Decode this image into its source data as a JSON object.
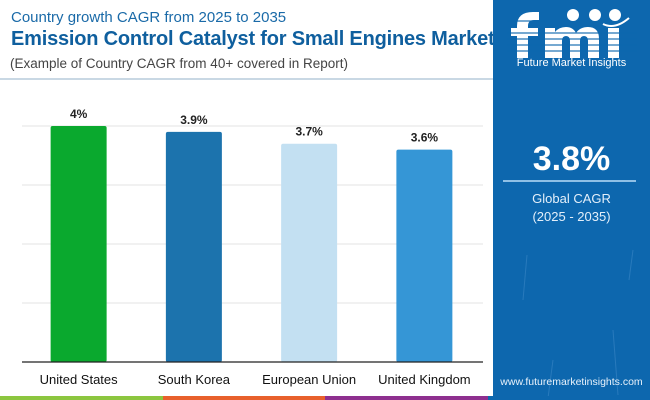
{
  "header": {
    "subtitle": "Country growth CAGR from 2025 to 2035",
    "title": "Emission Control Catalyst for Small Engines Market",
    "note": "(Example of Country CAGR from 40+ covered in Report)"
  },
  "sidebar": {
    "brand_logo_text": "fmi",
    "brand_name": "Future Market Insights",
    "global_cagr_value": "3.8%",
    "global_cagr_label": "Global CAGR",
    "global_cagr_period": "(2025 - 2035)",
    "website": "www.futuremarketinsights.com",
    "background_color": "#0d67ae"
  },
  "bottom_strip_colors": [
    "#8cc63f",
    "#e8602c",
    "#8e2f8f",
    "#0d67ae"
  ],
  "chart_data": {
    "type": "bar",
    "title": "Emission Control Catalyst for Small Engines Market",
    "subtitle": "Country growth CAGR from 2025 to 2035",
    "xlabel": "",
    "ylabel": "",
    "categories": [
      "United States",
      "South Korea",
      "European Union",
      "United Kingdom"
    ],
    "values": [
      4.0,
      3.9,
      3.7,
      3.6
    ],
    "data_labels": [
      "4%",
      "3.9%",
      "3.7%",
      "3.6%"
    ],
    "colors": [
      "#0aa92e",
      "#1c73ad",
      "#c3e0f2",
      "#3596d6"
    ],
    "ylim": [
      0,
      4
    ],
    "y_gridlines": [
      1,
      2,
      3,
      4
    ],
    "y_ticks_visible": false,
    "grid": true,
    "legend": "none"
  }
}
